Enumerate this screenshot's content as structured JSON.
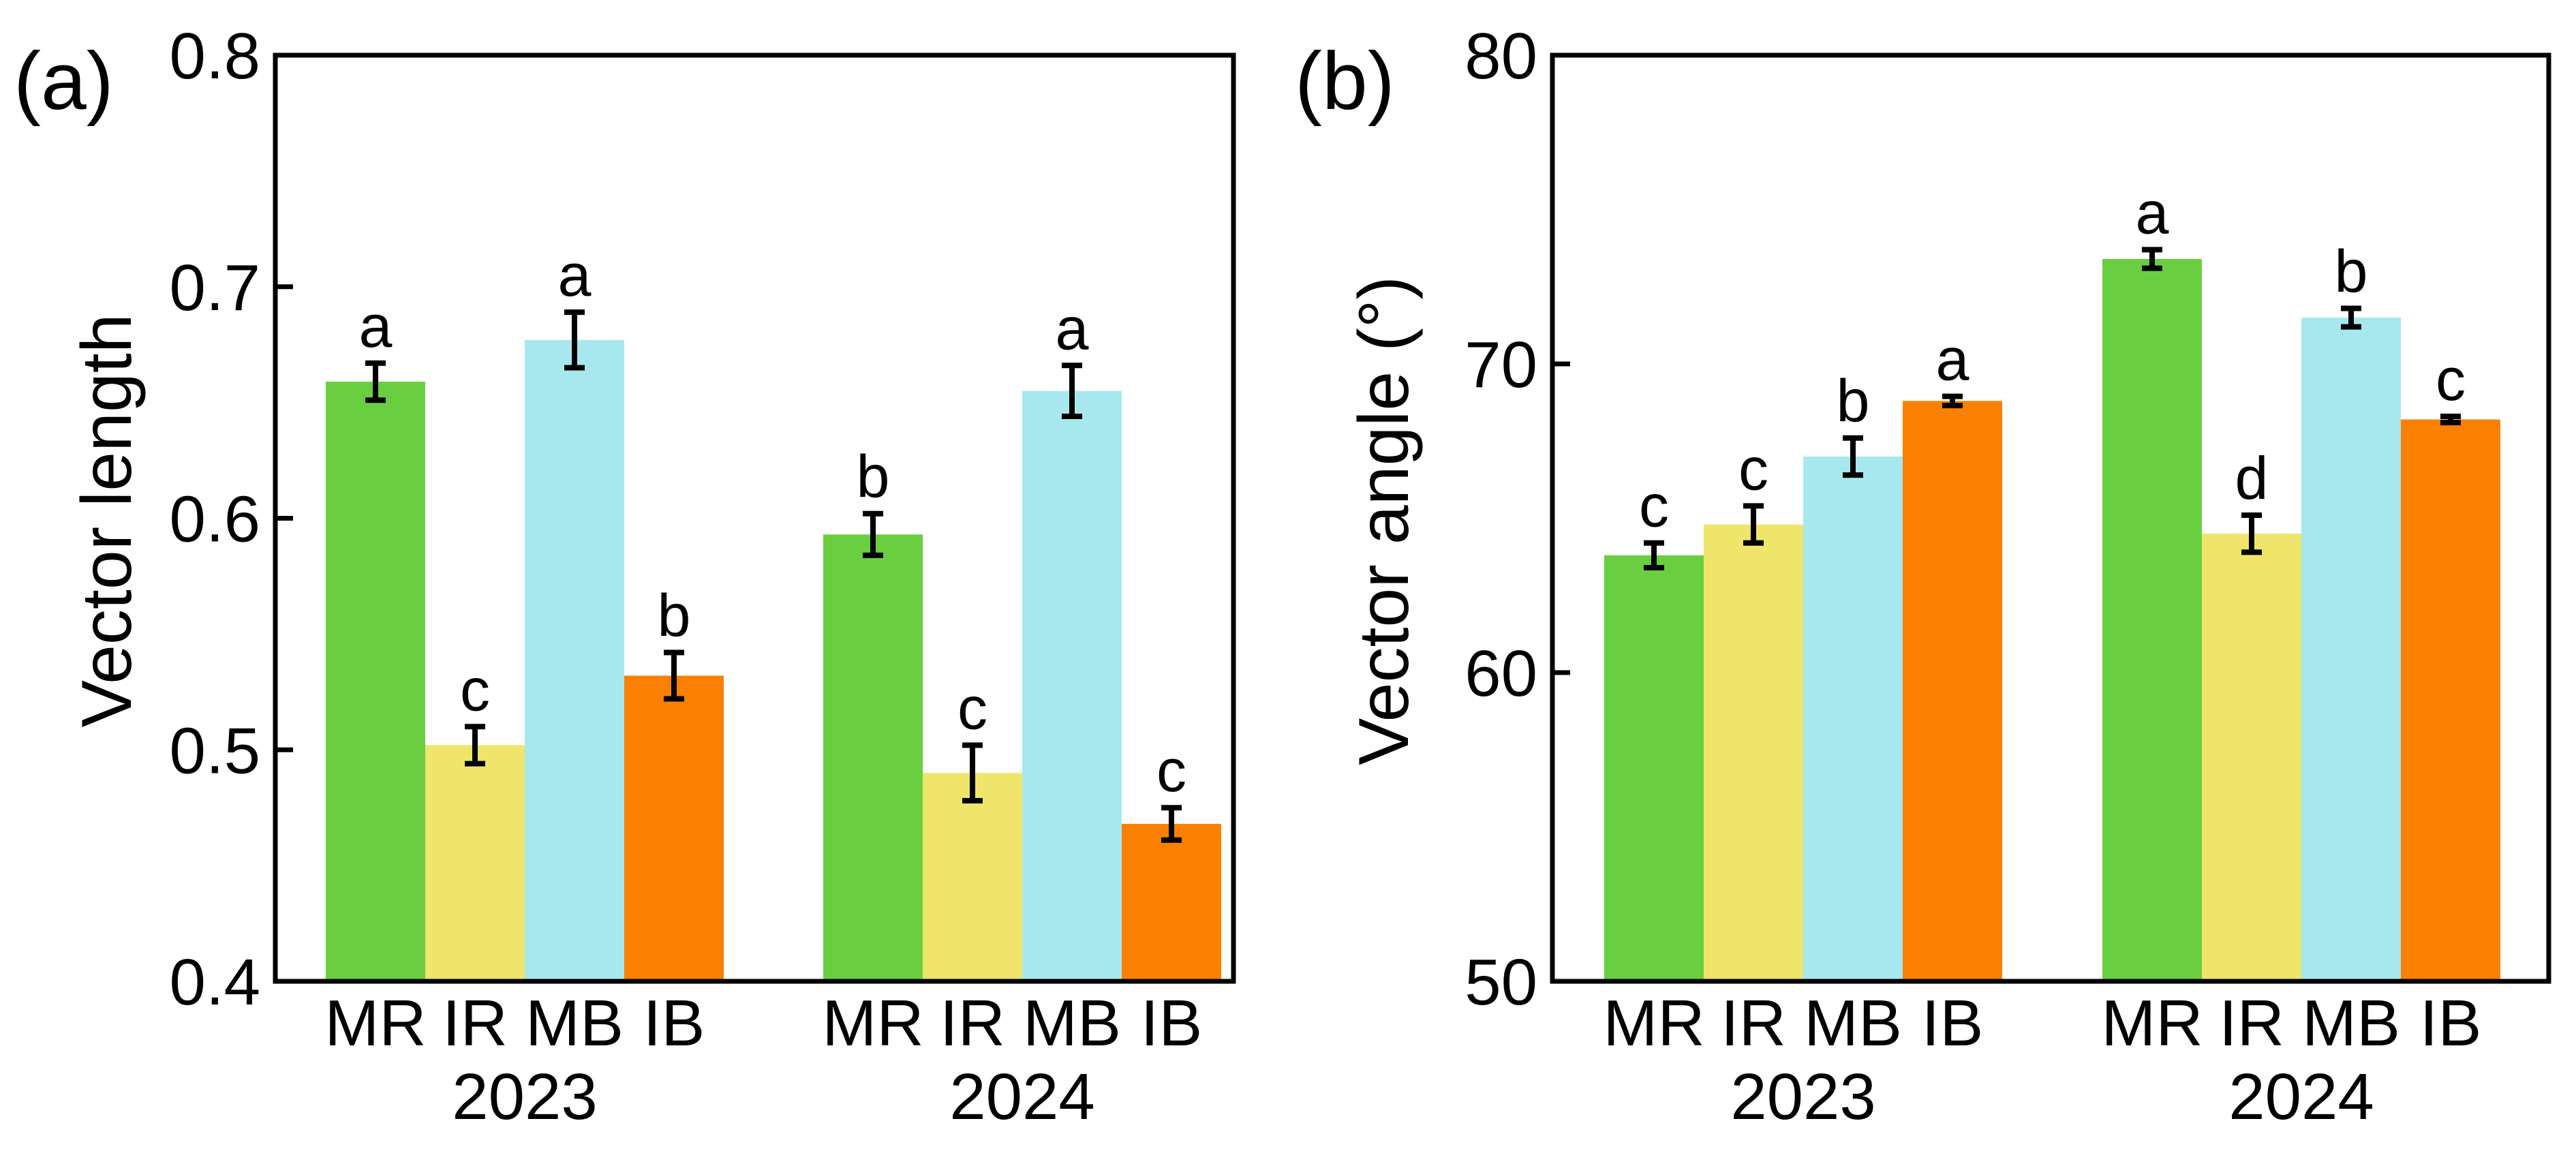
{
  "chart_data": [
    {
      "type": "bar",
      "panel_label": "(a)",
      "ylabel": "Vector length",
      "ylim": [
        0.4,
        0.8
      ],
      "yticks": [
        0.4,
        0.5,
        0.6,
        0.7,
        0.8
      ],
      "ytick_labels": [
        "0.4",
        "0.5",
        "0.6",
        "0.7",
        "0.8"
      ],
      "groups": [
        {
          "year": "2023",
          "bars": [
            {
              "category": "MR",
              "value": 0.659,
              "error": 0.008,
              "letter": "a"
            },
            {
              "category": "IR",
              "value": 0.502,
              "error": 0.008,
              "letter": "c"
            },
            {
              "category": "MB",
              "value": 0.677,
              "error": 0.012,
              "letter": "a"
            },
            {
              "category": "IB",
              "value": 0.532,
              "error": 0.01,
              "letter": "b"
            }
          ]
        },
        {
          "year": "2024",
          "bars": [
            {
              "category": "MR",
              "value": 0.593,
              "error": 0.009,
              "letter": "b"
            },
            {
              "category": "IR",
              "value": 0.49,
              "error": 0.012,
              "letter": "c"
            },
            {
              "category": "MB",
              "value": 0.655,
              "error": 0.011,
              "letter": "a"
            },
            {
              "category": "IB",
              "value": 0.468,
              "error": 0.007,
              "letter": "c"
            }
          ]
        }
      ]
    },
    {
      "type": "bar",
      "panel_label": "(b)",
      "ylabel": "Vector angle (°)",
      "ylim": [
        50,
        80
      ],
      "yticks": [
        50,
        60,
        70,
        80
      ],
      "ytick_labels": [
        "50",
        "60",
        "70",
        "80"
      ],
      "groups": [
        {
          "year": "2023",
          "bars": [
            {
              "category": "MR",
              "value": 63.8,
              "error": 0.4,
              "letter": "c"
            },
            {
              "category": "IR",
              "value": 64.8,
              "error": 0.6,
              "letter": "c"
            },
            {
              "category": "MB",
              "value": 67.0,
              "error": 0.6,
              "letter": "b"
            },
            {
              "category": "IB",
              "value": 68.8,
              "error": 0.15,
              "letter": "a"
            }
          ]
        },
        {
          "year": "2024",
          "bars": [
            {
              "category": "MR",
              "value": 73.4,
              "error": 0.3,
              "letter": "a"
            },
            {
              "category": "IR",
              "value": 64.5,
              "error": 0.6,
              "letter": "d"
            },
            {
              "category": "MB",
              "value": 71.5,
              "error": 0.3,
              "letter": "b"
            },
            {
              "category": "IB",
              "value": 68.2,
              "error": 0.1,
              "letter": "c"
            }
          ]
        }
      ]
    }
  ],
  "colors": {
    "MR": "#6acf40",
    "IR": "#efe56a",
    "MB": "#a7e8ee",
    "IB": "#fb8001",
    "axis": "#000000"
  }
}
